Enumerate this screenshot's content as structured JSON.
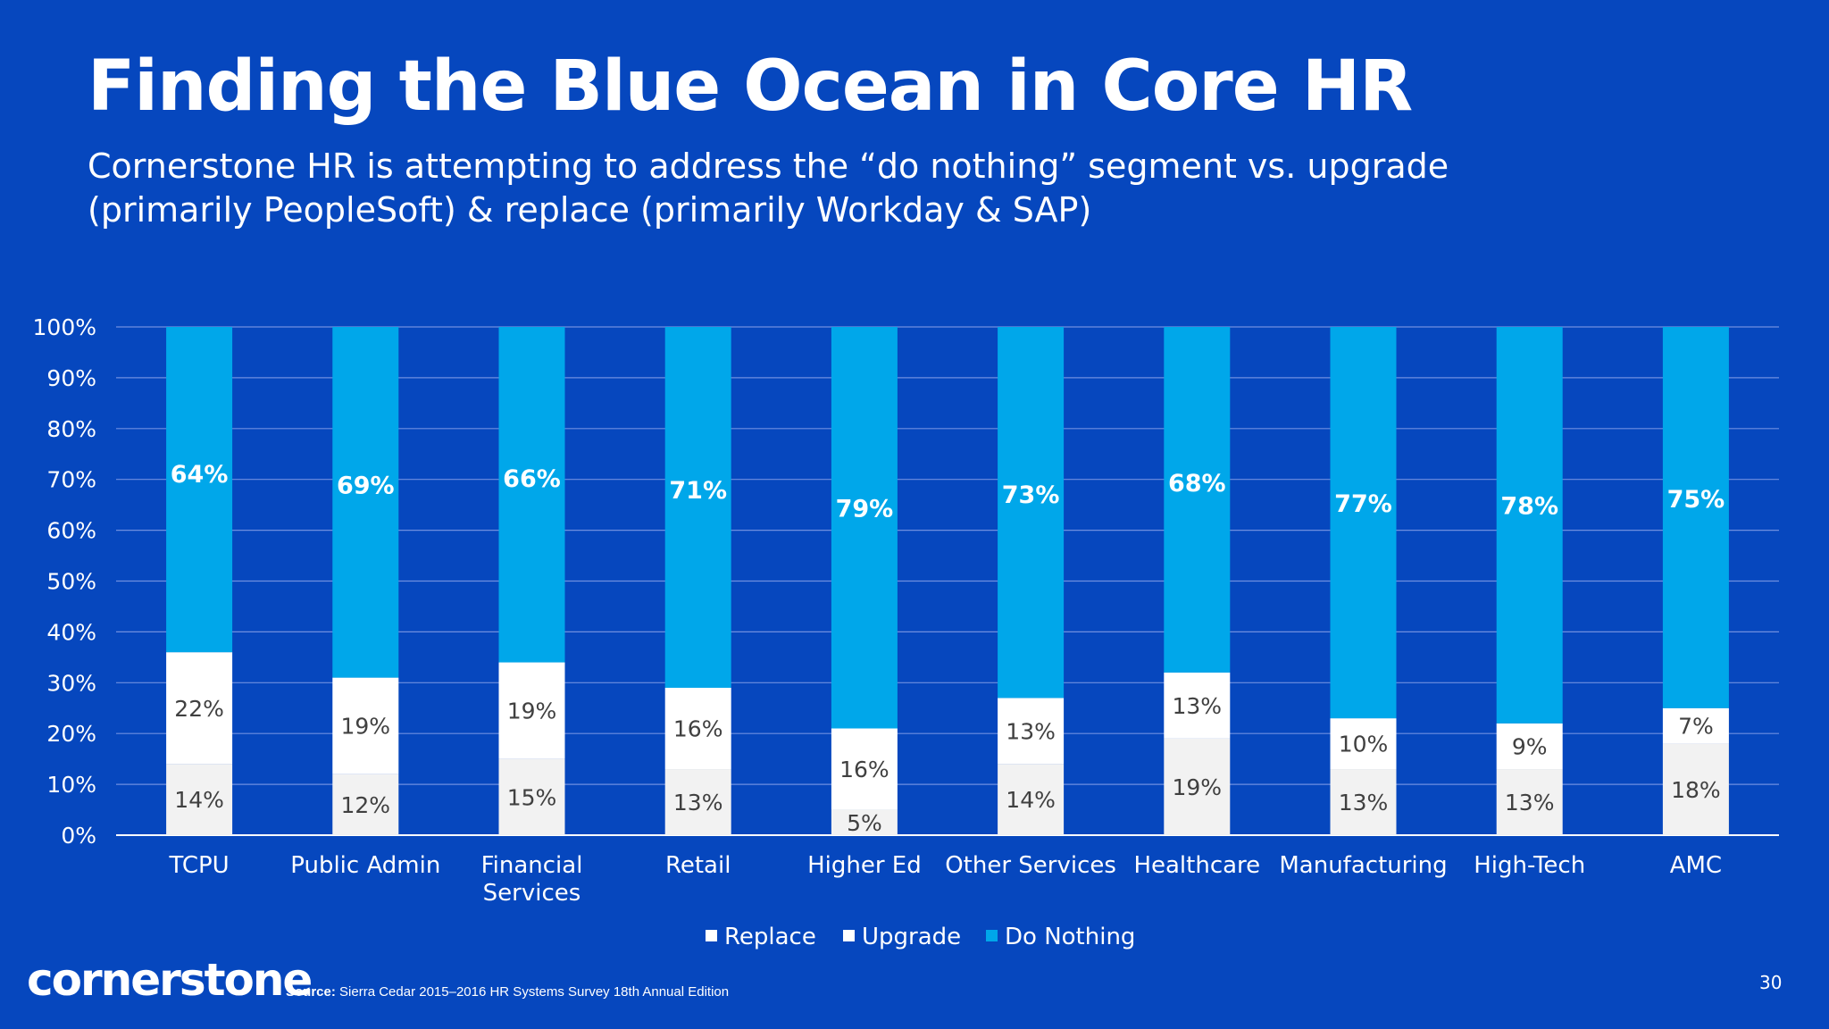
{
  "slide": {
    "title": "Finding the Blue Ocean in Core HR",
    "subtitle": "Cornerstone HR is attempting to address the “do nothing” segment vs. upgrade (primarily PeopleSoft) & replace (primarily Workday & SAP)",
    "logo_text": "cornerstone",
    "source_label": "Source:",
    "source_text": " Sierra Cedar 2015–2016 HR Systems Survey 18th Annual Edition",
    "page_number": "30"
  },
  "colors": {
    "background": "#0647be",
    "replace": "#f2f2f2",
    "upgrade": "#ffffff",
    "do_nothing": "#00a7ea",
    "gridline": "#6f8fe0"
  },
  "chart_data": {
    "type": "bar",
    "stacked": true,
    "categories": [
      "TCPU",
      "Public Admin",
      "Financial Services",
      "Retail",
      "Higher Ed",
      "Other Services",
      "Healthcare",
      "Manufacturing",
      "High-Tech",
      "AMC"
    ],
    "category_lines": [
      [
        "TCPU"
      ],
      [
        "Public Admin"
      ],
      [
        "Financial",
        "Services"
      ],
      [
        "Retail"
      ],
      [
        "Higher Ed"
      ],
      [
        "Other Services"
      ],
      [
        "Healthcare"
      ],
      [
        "Manufacturing"
      ],
      [
        "High-Tech"
      ],
      [
        "AMC"
      ]
    ],
    "series": [
      {
        "name": "Replace",
        "values": [
          14,
          12,
          15,
          13,
          5,
          14,
          19,
          13,
          13,
          18
        ],
        "labels": [
          "14%",
          "12%",
          "15%",
          "13%",
          "5%",
          "14%",
          "19%",
          "13%",
          "13%",
          "18%"
        ]
      },
      {
        "name": "Upgrade",
        "values": [
          22,
          19,
          19,
          16,
          16,
          13,
          13,
          10,
          9,
          7
        ],
        "labels": [
          "22%",
          "19%",
          "19%",
          "16%",
          "16%",
          "13%",
          "13%",
          "10%",
          "9%",
          "7%"
        ]
      },
      {
        "name": "Do Nothing",
        "values": [
          64,
          69,
          66,
          71,
          79,
          73,
          68,
          77,
          78,
          75
        ],
        "labels": [
          "64%",
          "69%",
          "66%",
          "71%",
          "79%",
          "73%",
          "68%",
          "77%",
          "78%",
          "75%"
        ]
      }
    ],
    "y_ticks": [
      "0%",
      "10%",
      "20%",
      "30%",
      "40%",
      "50%",
      "60%",
      "70%",
      "80%",
      "90%",
      "100%"
    ],
    "ylim": [
      0,
      100
    ],
    "grid": true,
    "legend_position": "bottom"
  }
}
